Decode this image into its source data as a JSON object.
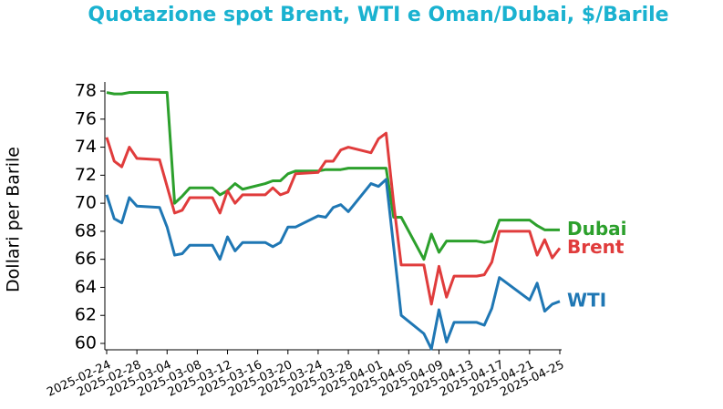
{
  "chart_data": {
    "type": "line",
    "title": "Quotazione spot Brent, WTI e Oman/Dubai, $/Barile",
    "y_label": "Dollari per Barile",
    "x": [
      "2025-02-24",
      "2025-02-25",
      "2025-02-26",
      "2025-02-27",
      "2025-02-28",
      "2025-03-03",
      "2025-03-04",
      "2025-03-05",
      "2025-03-06",
      "2025-03-07",
      "2025-03-10",
      "2025-03-11",
      "2025-03-12",
      "2025-03-13",
      "2025-03-14",
      "2025-03-17",
      "2025-03-18",
      "2025-03-19",
      "2025-03-20",
      "2025-03-21",
      "2025-03-24",
      "2025-03-25",
      "2025-03-26",
      "2025-03-27",
      "2025-03-28",
      "2025-03-31",
      "2025-04-01",
      "2025-04-02",
      "2025-04-03",
      "2025-04-04",
      "2025-04-07",
      "2025-04-08",
      "2025-04-09",
      "2025-04-10",
      "2025-04-11",
      "2025-04-14",
      "2025-04-15",
      "2025-04-16",
      "2025-04-17",
      "2025-04-21",
      "2025-04-22",
      "2025-04-23",
      "2025-04-24",
      "2025-04-25"
    ],
    "series": [
      {
        "name": "Dubai",
        "color": "#2ca02c",
        "values": [
          77.9,
          77.8,
          77.8,
          77.9,
          77.9,
          77.9,
          77.9,
          70.0,
          70.5,
          71.1,
          71.1,
          70.6,
          70.9,
          71.4,
          71.0,
          71.4,
          71.6,
          71.6,
          72.1,
          72.3,
          72.3,
          72.4,
          72.4,
          72.4,
          72.5,
          72.5,
          72.5,
          72.5,
          69.0,
          69.0,
          66.0,
          67.8,
          66.5,
          67.3,
          67.3,
          67.3,
          67.2,
          67.3,
          68.8,
          68.8,
          68.4,
          68.1,
          68.1,
          68.1
        ]
      },
      {
        "name": "Brent",
        "color": "#e03c3c",
        "values": [
          74.7,
          73.0,
          72.6,
          74.0,
          73.2,
          73.1,
          71.2,
          69.3,
          69.5,
          70.4,
          70.4,
          69.3,
          70.9,
          70.0,
          70.6,
          70.6,
          71.1,
          70.6,
          70.8,
          72.1,
          72.2,
          73.0,
          73.0,
          73.8,
          74.0,
          73.6,
          74.6,
          75.0,
          70.0,
          65.6,
          65.6,
          62.8,
          65.5,
          63.3,
          64.8,
          64.8,
          64.9,
          65.8,
          68.0,
          68.0,
          66.3,
          67.4,
          66.1,
          66.8
        ]
      },
      {
        "name": "WTI",
        "color": "#1f77b4",
        "values": [
          70.6,
          68.9,
          68.6,
          70.4,
          69.8,
          69.7,
          68.3,
          66.3,
          66.4,
          67.0,
          67.0,
          66.0,
          67.6,
          66.6,
          67.2,
          67.2,
          66.9,
          67.2,
          68.3,
          68.3,
          69.1,
          69.0,
          69.7,
          69.9,
          69.4,
          71.4,
          71.2,
          71.7,
          66.9,
          62.0,
          60.7,
          59.6,
          62.4,
          60.1,
          61.5,
          61.5,
          61.3,
          62.5,
          64.7,
          63.1,
          64.3,
          62.3,
          62.8,
          63.0
        ]
      }
    ],
    "xlim": [
      "2025-02-24",
      "2025-04-25"
    ],
    "xticks": [
      "2025-02-24",
      "2025-02-28",
      "2025-03-04",
      "2025-03-08",
      "2025-03-12",
      "2025-03-16",
      "2025-03-20",
      "2025-03-24",
      "2025-03-28",
      "2025-04-01",
      "2025-04-05",
      "2025-04-09",
      "2025-04-13",
      "2025-04-17",
      "2025-04-21",
      "2025-04-25"
    ],
    "ylim": [
      59.5,
      78.3
    ],
    "yticks": [
      60,
      62,
      64,
      66,
      68,
      70,
      72,
      74,
      76,
      78
    ]
  }
}
